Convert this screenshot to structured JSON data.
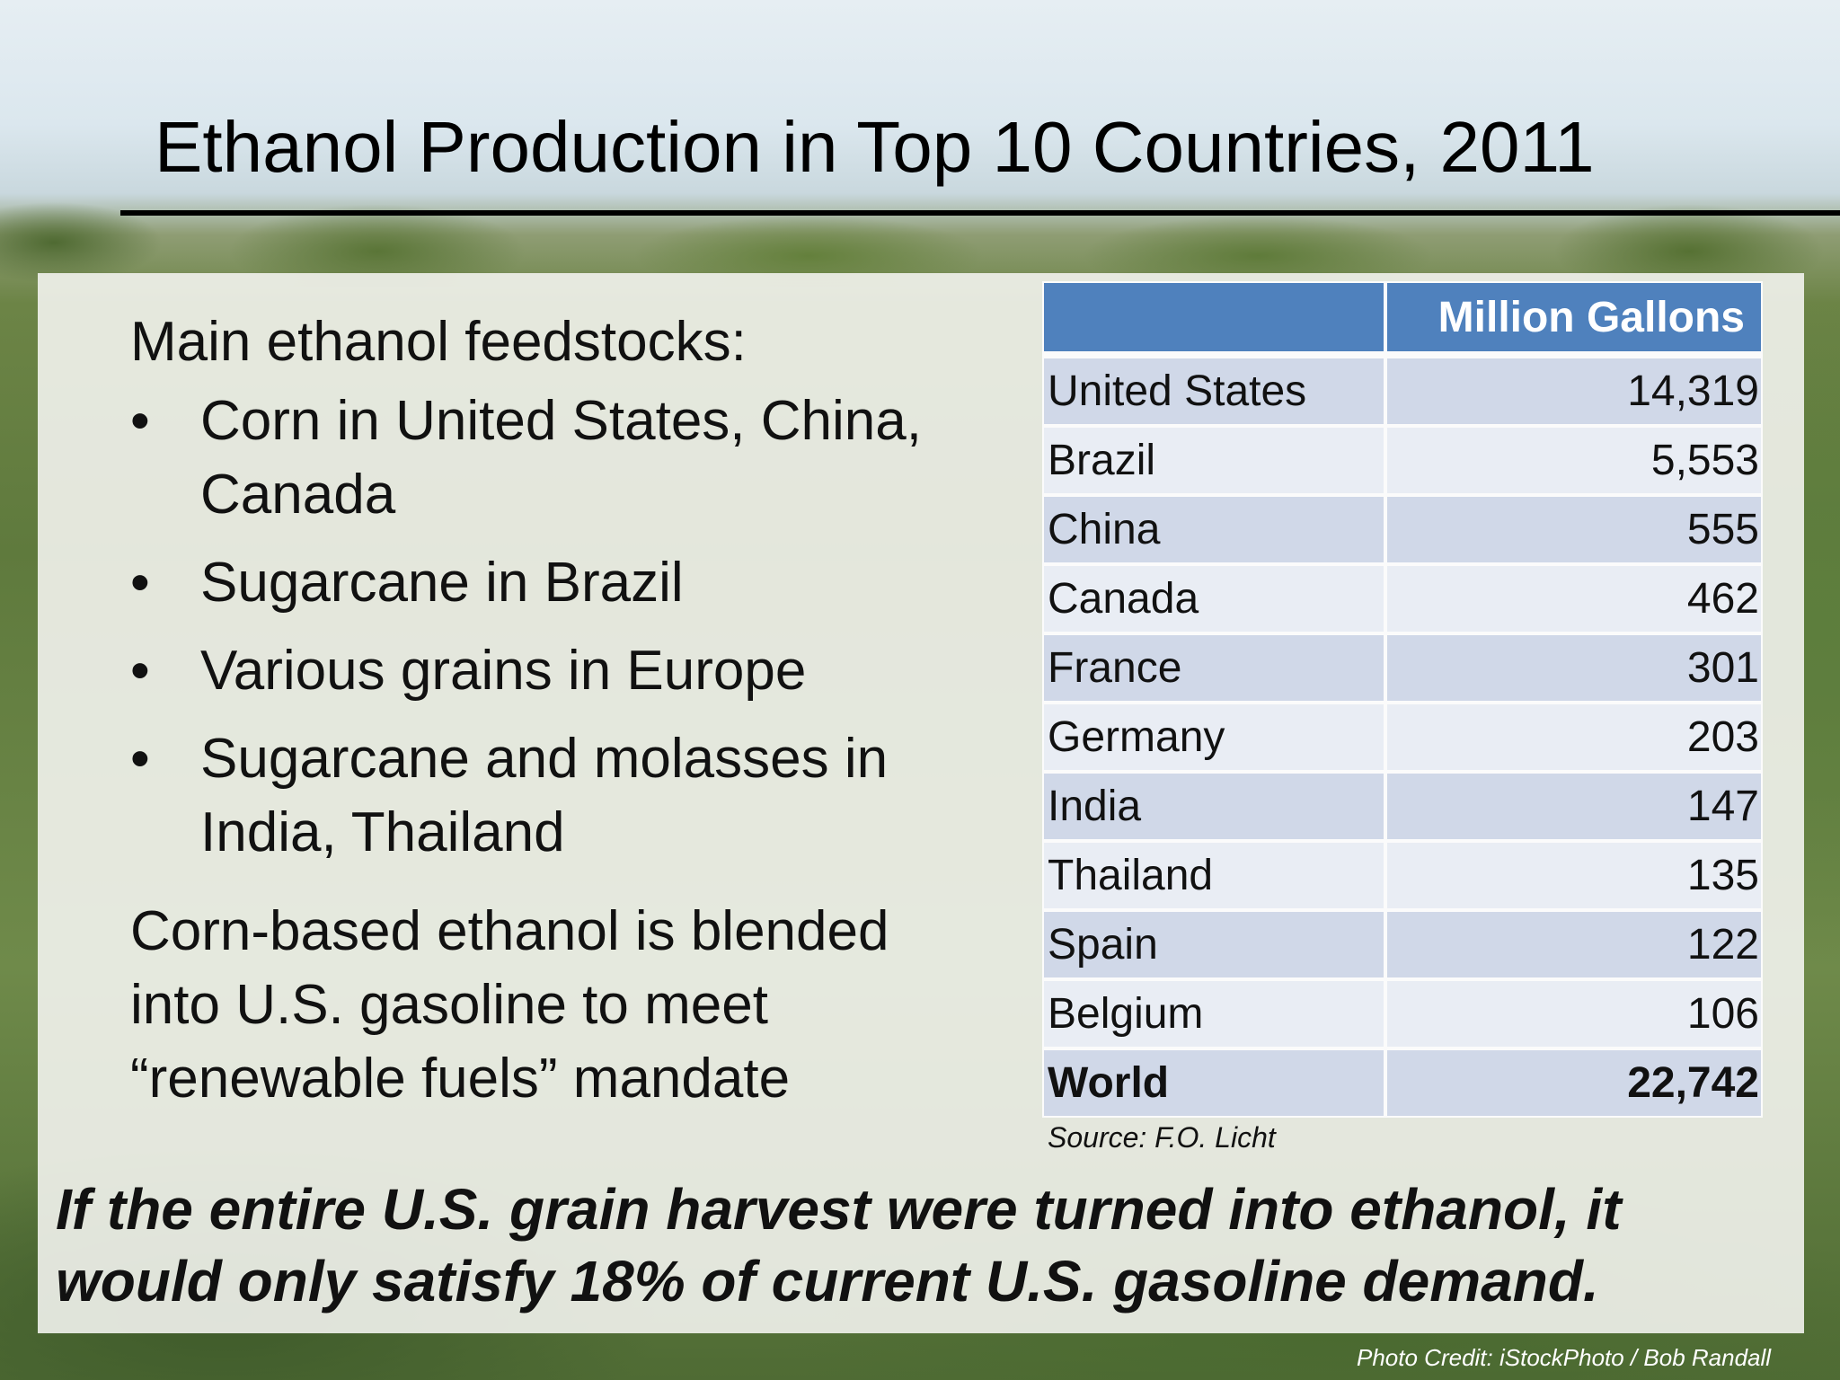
{
  "slide": {
    "title": "Ethanol Production in Top 10 Countries, 2011",
    "intro": "Main ethanol feedstocks:",
    "bullets": [
      "Corn in United States, China, Canada",
      "Sugarcane in Brazil",
      "Various grains in Europe",
      "Sugarcane and molasses in India, Thailand"
    ],
    "note": "Corn-based ethanol is blended into U.S. gasoline to meet “renewable fuels” mandate",
    "callout": "If the entire U.S. grain harvest were turned into ethanol, it would only satisfy 18% of current  U.S. gasoline demand.",
    "photo_credit": "Photo Credit: iStockPhoto / Bob Randall",
    "bullet_glyph": "•"
  },
  "table": {
    "header": "Million Gallons",
    "header_color": "#4f81bd",
    "rows": [
      {
        "country": "United States",
        "value": "14,319"
      },
      {
        "country": "Brazil",
        "value": "5,553"
      },
      {
        "country": "China",
        "value": "555"
      },
      {
        "country": "Canada",
        "value": "462"
      },
      {
        "country": "France",
        "value": "301"
      },
      {
        "country": "Germany",
        "value": "203"
      },
      {
        "country": "India",
        "value": "147"
      },
      {
        "country": "Thailand",
        "value": "135"
      },
      {
        "country": "Spain",
        "value": "122"
      },
      {
        "country": "Belgium",
        "value": "106"
      },
      {
        "country": "World",
        "value": "22,742"
      }
    ],
    "source": "Source: F.O. Licht"
  }
}
